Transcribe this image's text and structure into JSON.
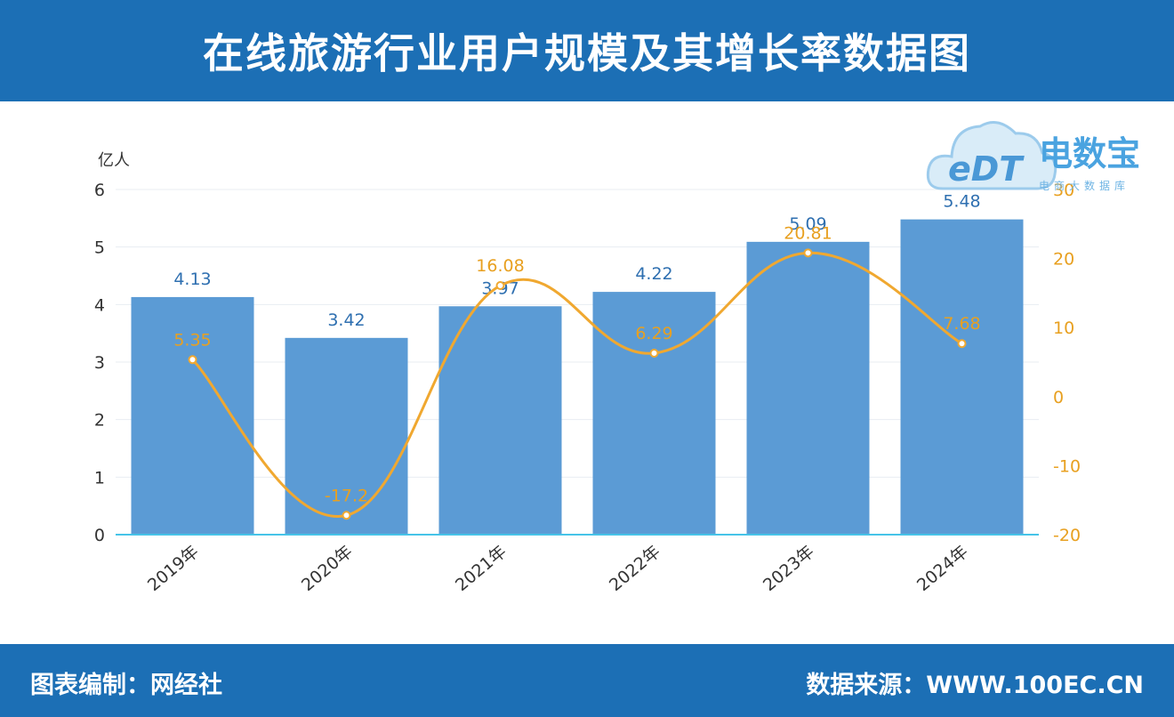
{
  "header": {
    "title": "在线旅游行业用户规模及其增长率数据图"
  },
  "footer": {
    "left": "图表编制：网经社",
    "right": "数据来源：WWW.100EC.CN"
  },
  "watermark": {
    "brand": "电数宝",
    "sub": "电商大数据库",
    "mark": "eDT"
  },
  "chart_data": {
    "type": "bar",
    "categories": [
      "2019年",
      "2020年",
      "2021年",
      "2022年",
      "2023年",
      "2024年"
    ],
    "series": [
      {
        "type": "bar",
        "values": [
          4.13,
          3.42,
          3.97,
          4.22,
          5.09,
          5.48
        ],
        "color": "#5b9bd5"
      },
      {
        "type": "line",
        "values": [
          5.35,
          -17.2,
          16.08,
          6.29,
          20.81,
          7.68
        ],
        "color": "#f0a830"
      }
    ],
    "y_left": {
      "label": "亿人",
      "min": 0,
      "max": 6,
      "ticks": [
        0,
        1,
        2,
        3,
        4,
        5,
        6
      ]
    },
    "y_right": {
      "label": "%",
      "min": -20,
      "max": 30,
      "ticks": [
        -20,
        -10,
        0,
        10,
        20,
        30
      ]
    },
    "grid": true
  }
}
